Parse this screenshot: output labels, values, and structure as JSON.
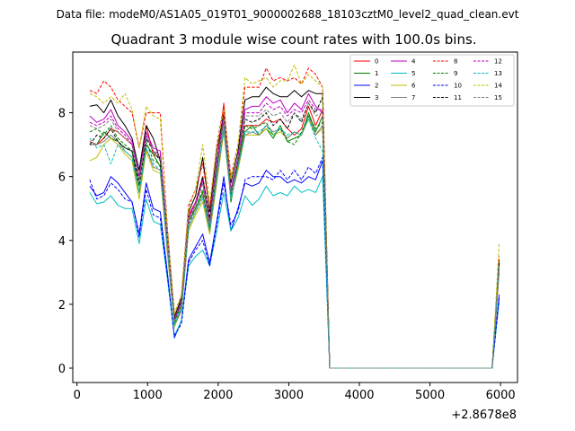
{
  "suptitle": "Data file: modeM0/AS1A05_019T01_9000002688_18103cztM0_level2_quad_clean.evt",
  "chart_data": {
    "type": "line",
    "title": "Quadrant 3 module wise count rates with 100.0s bins.",
    "xlabel": "",
    "ylabel": "",
    "x_offset_label": "+2.8678e8",
    "xlim": [
      -60,
      6240
    ],
    "ylim": [
      -0.45,
      9.9
    ],
    "xticks": [
      0,
      1000,
      2000,
      3000,
      4000,
      5000,
      6000
    ],
    "xtick_labels": [
      "0",
      "1000",
      "2000",
      "3000",
      "4000",
      "5000",
      "6000"
    ],
    "yticks": [
      0,
      2,
      4,
      6,
      8
    ],
    "ytick_labels": [
      "0",
      "2",
      "4",
      "6",
      "8"
    ],
    "grid": false,
    "legend_position": "top-right",
    "legend_columns": 4,
    "x": [
      180,
      280,
      380,
      480,
      580,
      680,
      780,
      880,
      980,
      1080,
      1180,
      1280,
      1380,
      1480,
      1580,
      1680,
      1780,
      1880,
      1980,
      2080,
      2180,
      2280,
      2380,
      2480,
      2580,
      2680,
      2780,
      2880,
      2980,
      3080,
      3180,
      3280,
      3380,
      3480,
      3580,
      3680,
      3780,
      3880,
      3980,
      4080,
      4180,
      4280,
      4380,
      4480,
      4580,
      4680,
      4780,
      4880,
      4980,
      5080,
      5180,
      5280,
      5380,
      5480,
      5580,
      5680,
      5780,
      5880,
      5980
    ],
    "series": [
      {
        "name": "0",
        "color": "#ff0000",
        "dash": false,
        "values": [
          7.1,
          7.0,
          7.2,
          7.5,
          7.4,
          7.2,
          7.0,
          6.0,
          7.6,
          6.7,
          6.6,
          4.0,
          1.5,
          2.0,
          4.8,
          5.2,
          6.0,
          4.6,
          6.4,
          8.3,
          5.5,
          6.5,
          7.6,
          7.6,
          7.6,
          7.8,
          7.7,
          7.8,
          7.5,
          7.3,
          7.5,
          8.2,
          7.6,
          8.1,
          0.0,
          0.0,
          0.0,
          0.0,
          0.0,
          0.0,
          0.0,
          0.0,
          0.0,
          0.0,
          0.0,
          0.0,
          0.0,
          0.0,
          0.0,
          0.0,
          0.0,
          0.0,
          0.0,
          0.0,
          0.0,
          0.0,
          0.0,
          0.0,
          3.3
        ]
      },
      {
        "name": "1",
        "color": "#008000",
        "dash": false,
        "values": [
          7.0,
          7.0,
          7.4,
          7.2,
          7.1,
          6.9,
          6.8,
          5.5,
          7.0,
          6.7,
          6.3,
          3.8,
          1.3,
          1.9,
          4.6,
          5.0,
          5.5,
          4.3,
          6.2,
          7.8,
          5.2,
          6.4,
          7.4,
          7.6,
          7.3,
          7.5,
          7.2,
          7.6,
          7.1,
          7.2,
          7.3,
          8.0,
          7.4,
          7.9,
          0.0,
          0.0,
          0.0,
          0.0,
          0.0,
          0.0,
          0.0,
          0.0,
          0.0,
          0.0,
          0.0,
          0.0,
          0.0,
          0.0,
          0.0,
          0.0,
          0.0,
          0.0,
          0.0,
          0.0,
          0.0,
          0.0,
          0.0,
          0.0,
          3.2
        ]
      },
      {
        "name": "2",
        "color": "#0000ff",
        "dash": false,
        "values": [
          5.7,
          5.4,
          5.5,
          6.0,
          5.8,
          5.5,
          5.2,
          4.2,
          5.8,
          5.0,
          4.9,
          3.0,
          0.95,
          1.5,
          3.4,
          3.8,
          4.2,
          3.3,
          4.6,
          6.0,
          4.3,
          5.0,
          5.8,
          5.7,
          5.8,
          6.2,
          6.0,
          6.0,
          5.8,
          5.9,
          5.8,
          6.0,
          5.9,
          6.5,
          0.0,
          0.0,
          0.0,
          0.0,
          0.0,
          0.0,
          0.0,
          0.0,
          0.0,
          0.0,
          0.0,
          0.0,
          0.0,
          0.0,
          0.0,
          0.0,
          0.0,
          0.0,
          0.0,
          0.0,
          0.0,
          0.0,
          0.0,
          0.0,
          2.3
        ]
      },
      {
        "name": "3",
        "color": "#000000",
        "dash": false,
        "values": [
          8.2,
          8.25,
          8.0,
          8.4,
          7.9,
          7.6,
          7.2,
          6.2,
          7.6,
          7.2,
          6.5,
          4.3,
          1.6,
          2.2,
          4.9,
          5.4,
          6.6,
          4.9,
          6.8,
          8.0,
          5.8,
          6.8,
          8.4,
          8.5,
          8.5,
          8.8,
          8.6,
          8.5,
          8.5,
          8.7,
          8.5,
          8.7,
          8.6,
          8.6,
          0.0,
          0.0,
          0.0,
          0.0,
          0.0,
          0.0,
          0.0,
          0.0,
          0.0,
          0.0,
          0.0,
          0.0,
          0.0,
          0.0,
          0.0,
          0.0,
          0.0,
          0.0,
          0.0,
          0.0,
          0.0,
          0.0,
          0.0,
          0.0,
          3.4
        ]
      },
      {
        "name": "4",
        "color": "#bf00bf",
        "dash": false,
        "values": [
          7.9,
          7.7,
          7.8,
          8.1,
          7.6,
          7.4,
          7.1,
          6.0,
          7.4,
          6.9,
          6.8,
          4.2,
          1.5,
          2.1,
          4.7,
          5.2,
          5.9,
          4.6,
          6.5,
          7.9,
          5.6,
          6.6,
          8.1,
          8.2,
          8.2,
          8.5,
          8.3,
          8.4,
          8.0,
          8.3,
          8.1,
          8.6,
          8.2,
          8.0,
          0.0,
          0.0,
          0.0,
          0.0,
          0.0,
          0.0,
          0.0,
          0.0,
          0.0,
          0.0,
          0.0,
          0.0,
          0.0,
          0.0,
          0.0,
          0.0,
          0.0,
          0.0,
          0.0,
          0.0,
          0.0,
          0.0,
          0.0,
          0.0,
          3.1
        ]
      },
      {
        "name": "5",
        "color": "#00bfbf",
        "dash": false,
        "values": [
          5.5,
          5.15,
          5.2,
          5.4,
          5.1,
          5.0,
          5.0,
          3.9,
          5.3,
          4.6,
          4.5,
          2.8,
          1.0,
          1.5,
          3.2,
          3.5,
          3.7,
          3.2,
          4.3,
          5.5,
          4.3,
          4.7,
          5.4,
          5.1,
          5.3,
          5.7,
          5.4,
          5.5,
          5.4,
          5.7,
          5.5,
          5.6,
          5.5,
          6.0,
          0.0,
          0.0,
          0.0,
          0.0,
          0.0,
          0.0,
          0.0,
          0.0,
          0.0,
          0.0,
          0.0,
          0.0,
          0.0,
          0.0,
          0.0,
          0.0,
          0.0,
          0.0,
          0.0,
          0.0,
          0.0,
          0.0,
          0.0,
          0.0,
          2.1
        ]
      },
      {
        "name": "6",
        "color": "#bfbf00",
        "dash": false,
        "values": [
          6.5,
          6.6,
          7.0,
          7.2,
          7.0,
          6.7,
          6.5,
          5.3,
          6.8,
          6.2,
          6.1,
          3.6,
          1.3,
          1.8,
          4.3,
          4.8,
          5.2,
          4.2,
          5.8,
          7.4,
          5.3,
          6.2,
          7.3,
          7.3,
          7.3,
          7.5,
          7.3,
          7.4,
          7.2,
          7.4,
          7.3,
          7.8,
          7.3,
          7.5,
          0.0,
          0.0,
          0.0,
          0.0,
          0.0,
          0.0,
          0.0,
          0.0,
          0.0,
          0.0,
          0.0,
          0.0,
          0.0,
          0.0,
          0.0,
          0.0,
          0.0,
          0.0,
          0.0,
          0.0,
          0.0,
          0.0,
          0.0,
          0.0,
          3.0
        ]
      },
      {
        "name": "7",
        "color": "#808080",
        "dash": false,
        "values": [
          7.0,
          7.0,
          7.1,
          7.3,
          7.1,
          6.8,
          6.6,
          5.5,
          6.9,
          6.3,
          6.2,
          3.7,
          1.35,
          1.8,
          4.4,
          4.9,
          5.4,
          4.3,
          5.9,
          7.5,
          5.3,
          6.3,
          7.3,
          7.4,
          7.3,
          7.6,
          7.4,
          7.5,
          7.2,
          7.4,
          7.3,
          7.9,
          7.3,
          7.6,
          0.0,
          0.0,
          0.0,
          0.0,
          0.0,
          0.0,
          0.0,
          0.0,
          0.0,
          0.0,
          0.0,
          0.0,
          0.0,
          0.0,
          0.0,
          0.0,
          0.0,
          0.0,
          0.0,
          0.0,
          0.0,
          0.0,
          0.0,
          0.0,
          3.1
        ]
      },
      {
        "name": "8",
        "color": "#ff0000",
        "dash": true,
        "values": [
          8.7,
          8.6,
          9.0,
          8.8,
          8.4,
          8.2,
          8.0,
          6.9,
          8.0,
          8.0,
          8.0,
          4.4,
          1.7,
          2.3,
          5.1,
          5.6,
          6.4,
          5.0,
          7.0,
          8.2,
          6.0,
          7.0,
          8.8,
          8.8,
          8.8,
          9.4,
          9.0,
          9.1,
          9.0,
          9.1,
          8.9,
          9.4,
          9.2,
          8.8,
          0.0,
          0.0,
          0.0,
          0.0,
          0.0,
          0.0,
          0.0,
          0.0,
          0.0,
          0.0,
          0.0,
          0.0,
          0.0,
          0.0,
          0.0,
          0.0,
          0.0,
          0.0,
          0.0,
          0.0,
          0.0,
          0.0,
          0.0,
          0.0,
          3.5
        ]
      },
      {
        "name": "9",
        "color": "#008000",
        "dash": true,
        "values": [
          7.4,
          7.5,
          7.3,
          7.6,
          7.2,
          7.0,
          6.8,
          5.7,
          7.1,
          6.5,
          6.4,
          3.9,
          1.4,
          2.0,
          4.5,
          5.0,
          5.6,
          4.4,
          6.1,
          7.7,
          5.4,
          6.4,
          7.6,
          7.5,
          7.6,
          7.7,
          7.3,
          7.5,
          7.1,
          7.0,
          7.4,
          7.9,
          7.5,
          7.7,
          0.0,
          0.0,
          0.0,
          0.0,
          0.0,
          0.0,
          0.0,
          0.0,
          0.0,
          0.0,
          0.0,
          0.0,
          0.0,
          0.0,
          0.0,
          0.0,
          0.0,
          0.0,
          0.0,
          0.0,
          0.0,
          0.0,
          0.0,
          0.0,
          3.2
        ]
      },
      {
        "name": "10",
        "color": "#0000ff",
        "dash": true,
        "values": [
          5.9,
          5.3,
          5.4,
          5.8,
          5.6,
          5.3,
          5.2,
          4.1,
          5.6,
          4.8,
          4.7,
          2.9,
          1.0,
          1.4,
          3.3,
          3.7,
          4.0,
          3.2,
          4.5,
          5.8,
          4.5,
          4.9,
          5.9,
          6.0,
          6.0,
          6.0,
          5.9,
          6.2,
          5.9,
          6.2,
          5.9,
          6.3,
          6.1,
          6.6,
          0.0,
          0.0,
          0.0,
          0.0,
          0.0,
          0.0,
          0.0,
          0.0,
          0.0,
          0.0,
          0.0,
          0.0,
          0.0,
          0.0,
          0.0,
          0.0,
          0.0,
          0.0,
          0.0,
          0.0,
          0.0,
          0.0,
          0.0,
          0.0,
          2.2
        ]
      },
      {
        "name": "11",
        "color": "#000000",
        "dash": true,
        "values": [
          7.0,
          7.3,
          7.2,
          7.5,
          7.1,
          6.9,
          6.8,
          5.8,
          7.2,
          6.8,
          6.5,
          4.0,
          1.5,
          2.1,
          4.6,
          5.1,
          6.0,
          4.7,
          6.3,
          7.8,
          5.5,
          6.5,
          7.8,
          7.7,
          7.8,
          8.0,
          7.6,
          7.8,
          7.5,
          8.0,
          7.7,
          8.3,
          8.0,
          8.5,
          0.0,
          0.0,
          0.0,
          0.0,
          0.0,
          0.0,
          0.0,
          0.0,
          0.0,
          0.0,
          0.0,
          0.0,
          0.0,
          0.0,
          0.0,
          0.0,
          0.0,
          0.0,
          0.0,
          0.0,
          0.0,
          0.0,
          0.0,
          0.0,
          3.3
        ]
      },
      {
        "name": "12",
        "color": "#bf00bf",
        "dash": true,
        "values": [
          7.7,
          7.6,
          7.7,
          7.9,
          7.5,
          7.3,
          7.0,
          5.9,
          7.3,
          6.8,
          6.7,
          4.1,
          1.5,
          2.1,
          4.7,
          5.1,
          5.8,
          4.5,
          6.4,
          7.8,
          5.5,
          6.6,
          8.0,
          8.0,
          8.0,
          8.3,
          8.1,
          8.2,
          7.9,
          8.1,
          8.0,
          8.4,
          8.1,
          8.1,
          0.0,
          0.0,
          0.0,
          0.0,
          0.0,
          0.0,
          0.0,
          0.0,
          0.0,
          0.0,
          0.0,
          0.0,
          0.0,
          0.0,
          0.0,
          0.0,
          0.0,
          0.0,
          0.0,
          0.0,
          0.0,
          0.0,
          0.0,
          0.0,
          3.1
        ]
      },
      {
        "name": "13",
        "color": "#00bfbf",
        "dash": true,
        "values": [
          7.2,
          6.9,
          7.0,
          6.4,
          7.0,
          6.8,
          6.6,
          5.5,
          6.9,
          6.4,
          6.2,
          3.8,
          1.35,
          1.9,
          4.4,
          4.9,
          5.3,
          4.3,
          6.0,
          7.6,
          5.3,
          6.3,
          7.4,
          7.4,
          7.4,
          7.6,
          7.3,
          7.5,
          7.3,
          7.4,
          7.3,
          7.8,
          7.2,
          6.8,
          0.0,
          0.0,
          0.0,
          0.0,
          0.0,
          0.0,
          0.0,
          0.0,
          0.0,
          0.0,
          0.0,
          0.0,
          0.0,
          0.0,
          0.0,
          0.0,
          0.0,
          0.0,
          0.0,
          0.0,
          0.0,
          0.0,
          0.0,
          0.0,
          3.2
        ]
      },
      {
        "name": "14",
        "color": "#bfbf00",
        "dash": true,
        "values": [
          8.6,
          8.5,
          8.3,
          8.5,
          8.3,
          8.6,
          8.1,
          6.9,
          8.2,
          7.9,
          7.8,
          4.3,
          1.7,
          2.3,
          5.0,
          5.6,
          7.0,
          5.2,
          6.9,
          8.1,
          5.9,
          7.0,
          9.1,
          8.9,
          9.0,
          9.1,
          8.8,
          9.0,
          9.0,
          9.5,
          8.9,
          9.2,
          9.0,
          8.8,
          0.0,
          0.0,
          0.0,
          0.0,
          0.0,
          0.0,
          0.0,
          0.0,
          0.0,
          0.0,
          0.0,
          0.0,
          0.0,
          0.0,
          0.0,
          0.0,
          0.0,
          0.0,
          0.0,
          0.0,
          0.0,
          0.0,
          0.0,
          0.0,
          3.9
        ]
      },
      {
        "name": "15",
        "color": "#808080",
        "dash": true,
        "values": [
          7.6,
          7.5,
          7.6,
          7.8,
          7.4,
          7.2,
          7.0,
          5.9,
          7.3,
          6.8,
          6.6,
          4.0,
          1.45,
          2.0,
          4.6,
          5.1,
          5.8,
          4.5,
          6.3,
          7.8,
          5.5,
          6.5,
          7.9,
          7.9,
          7.9,
          8.1,
          7.9,
          8.0,
          7.7,
          8.0,
          7.8,
          8.3,
          7.9,
          8.0,
          0.0,
          0.0,
          0.0,
          0.0,
          0.0,
          0.0,
          0.0,
          0.0,
          0.0,
          0.0,
          0.0,
          0.0,
          0.0,
          0.0,
          0.0,
          0.0,
          0.0,
          0.0,
          0.0,
          0.0,
          0.0,
          0.0,
          0.0,
          0.0,
          3.1
        ]
      }
    ]
  }
}
